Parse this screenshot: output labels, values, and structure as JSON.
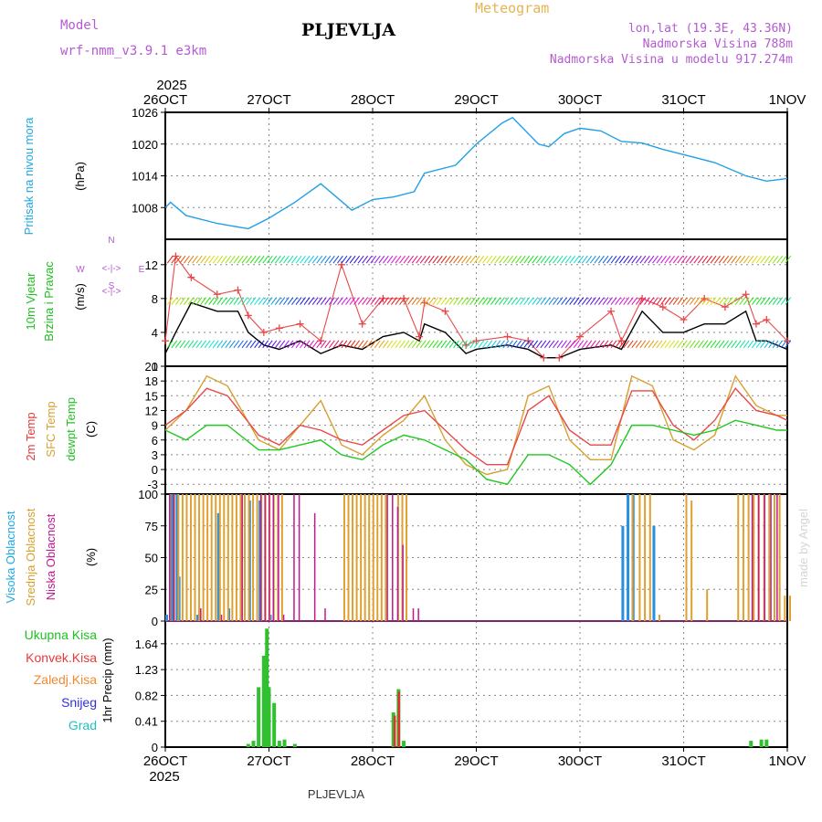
{
  "header": {
    "model_label": "Model",
    "model_name": "wrf-nmm_v3.9.1 e3km",
    "station": "PLJEVLJA",
    "meteogram_label": "Meteogram",
    "lonlat": "lon,lat (19.3E, 43.36N)",
    "altitude": "Nadmorska Visina 788m",
    "model_altitude": "Nadmorska Visina u modelu 917.274m",
    "watermark": "made by Angel",
    "footer_station": "PLJEVLJA"
  },
  "colors": {
    "pressure": "#20a0e8",
    "temp2m": "#e84848",
    "sfc": "#d8a030",
    "dewpt": "#20c820",
    "wind_speed": "#000000",
    "gust": "#e84848",
    "frame": "#000000",
    "cloud_high": "#2890e0",
    "cloud_mid": "#e0a030",
    "cloud_low": "#c01890",
    "precip_total": "#30c030",
    "precip_conv": "#e03030",
    "label_cyan": "#20a8e0",
    "label_green": "#20c020",
    "label_red": "#e83838",
    "label_orange": "#f08a30",
    "label_blue": "#3030e0",
    "label_teal": "#20c0c0",
    "label_purple": "#b45ad2"
  },
  "time_axis": {
    "top_year": "2025",
    "bottom_year": "2025",
    "ticks": [
      "26OCT",
      "27OCT",
      "28OCT",
      "29OCT",
      "30OCT",
      "31OCT",
      "1NOV"
    ]
  },
  "chart_data": [
    {
      "type": "line",
      "name": "pressure",
      "ylabel_left": "Pritisak na nivou mora",
      "ylabel_unit": "(hPa)",
      "ylim": [
        1002,
        1026
      ],
      "yticks": [
        "1026",
        "1020",
        "1014",
        "1008"
      ],
      "x_days": [
        0,
        0.05,
        0.2,
        0.5,
        0.8,
        1.0,
        1.25,
        1.5,
        1.65,
        1.8,
        2.0,
        2.2,
        2.4,
        2.5,
        2.8,
        3.0,
        3.25,
        3.35,
        3.6,
        3.7,
        3.85,
        4.0,
        4.2,
        4.4,
        4.6,
        4.8,
        5.0,
        5.3,
        5.6,
        5.8,
        6.0
      ],
      "series": [
        {
          "name": "Pritisak",
          "values": [
            1008,
            1009,
            1006.5,
            1005,
            1004,
            1006,
            1009,
            1012.5,
            1010,
            1007.5,
            1009.5,
            1010,
            1011,
            1014.5,
            1016,
            1020,
            1024,
            1025,
            1020,
            1019.5,
            1022,
            1023,
            1022.5,
            1020.5,
            1020.2,
            1019,
            1018,
            1016.5,
            1014,
            1013,
            1013.5
          ]
        }
      ]
    },
    {
      "type": "line",
      "name": "wind",
      "ylabel_left": "10m Vjetar",
      "ylabel_left2": "Brzina i Pravac",
      "ylabel_unit": "(m/s)",
      "compass_n": "N",
      "compass_s": "S",
      "compass_w": "W",
      "compass_e": "E",
      "compass_row1": "<-|->",
      "compass_row2": "<-|->",
      "ylim": [
        0,
        15
      ],
      "yticks": [
        "12",
        "8",
        "4",
        "0"
      ],
      "x_days": [
        0,
        0.1,
        0.25,
        0.5,
        0.7,
        0.8,
        0.95,
        1.1,
        1.3,
        1.5,
        1.7,
        1.9,
        2.1,
        2.3,
        2.45,
        2.5,
        2.7,
        2.9,
        3.0,
        3.3,
        3.5,
        3.65,
        3.8,
        4.0,
        4.3,
        4.4,
        4.6,
        4.8,
        5.0,
        5.2,
        5.4,
        5.6,
        5.7,
        5.8,
        6.0
      ],
      "series": [
        {
          "name": "Brzina",
          "values": [
            1.5,
            4,
            7.5,
            6.5,
            6.5,
            4,
            2.5,
            2,
            3,
            1.5,
            2.5,
            2,
            3.5,
            4,
            3,
            5,
            4,
            1.5,
            2,
            2.5,
            2,
            1,
            1,
            2,
            2.5,
            2,
            6.5,
            4,
            4,
            5,
            5,
            6.5,
            3,
            3,
            2
          ]
        },
        {
          "name": "Udari",
          "values": [
            3,
            13,
            10.5,
            8.5,
            9,
            6,
            4,
            4.5,
            5,
            3,
            12,
            5,
            8,
            8,
            3.5,
            7.5,
            6.5,
            2.5,
            3,
            3.5,
            3,
            1,
            1,
            3.5,
            6.5,
            3,
            8,
            7,
            5.5,
            8,
            7,
            8.5,
            5,
            5.5,
            3
          ]
        }
      ]
    },
    {
      "type": "line",
      "name": "temperature",
      "ylabel_1": "2m Temp",
      "ylabel_2": "SFC Temp",
      "ylabel_3": "dewpt Temp",
      "ylabel_unit": "(C)",
      "ylim": [
        -5,
        21
      ],
      "yticks": [
        "21",
        "18",
        "15",
        "12",
        "9",
        "6",
        "3",
        "0",
        "-3"
      ],
      "x_days": [
        0,
        0.2,
        0.4,
        0.6,
        0.9,
        1.1,
        1.3,
        1.5,
        1.7,
        1.9,
        2.1,
        2.3,
        2.5,
        2.7,
        2.9,
        3.1,
        3.3,
        3.5,
        3.7,
        3.9,
        4.1,
        4.3,
        4.5,
        4.7,
        4.9,
        5.1,
        5.3,
        5.5,
        5.7,
        5.9,
        6.0
      ],
      "series": [
        {
          "name": "2m Temp",
          "values": [
            9,
            12,
            16.5,
            15,
            7,
            5,
            9,
            8,
            6,
            5,
            8,
            11,
            12,
            8,
            4,
            1,
            1,
            12,
            15,
            8,
            5,
            5,
            16,
            16,
            9,
            6,
            10,
            16.5,
            12,
            11,
            10
          ]
        },
        {
          "name": "SFC Temp",
          "values": [
            8,
            12,
            19,
            17,
            6,
            4,
            9,
            14,
            5,
            3,
            7,
            10,
            15,
            6,
            1,
            -1,
            0,
            15,
            17,
            6,
            2,
            2,
            19,
            17,
            6,
            4,
            7,
            19,
            13,
            11,
            11
          ]
        },
        {
          "name": "dewpt Temp",
          "values": [
            8,
            6,
            9,
            9,
            4,
            4,
            5,
            6,
            3,
            2,
            5,
            7,
            6,
            4,
            2,
            -2,
            -3,
            3,
            3,
            1,
            -3,
            1,
            9,
            9,
            8,
            7,
            8,
            10,
            9,
            8,
            8
          ]
        }
      ]
    },
    {
      "type": "bar",
      "name": "clouds",
      "ylabel_1": "Visoka Oblacnost",
      "ylabel_2": "Srednja Oblacnost",
      "ylabel_3": "Niska Oblacnost",
      "ylabel_unit": "(%)",
      "ylim": [
        0,
        100
      ],
      "yticks": [
        "100",
        "75",
        "50",
        "25",
        "0"
      ],
      "series": [
        {
          "name": "Visoka",
          "x_days": [
            0.0,
            0.05,
            0.1,
            0.12,
            0.3,
            0.5,
            0.6,
            0.8,
            0.9,
            1.0,
            4.4,
            4.45,
            4.5,
            4.7
          ],
          "values": [
            5,
            100,
            100,
            35,
            5,
            85,
            10,
            95,
            95,
            5,
            75,
            100,
            100,
            75
          ]
        },
        {
          "name": "Srednja",
          "x_days": [
            0.02,
            0.06,
            0.1,
            0.14,
            0.18,
            0.22,
            0.26,
            0.3,
            0.34,
            0.38,
            0.42,
            0.46,
            0.5,
            0.54,
            0.58,
            0.62,
            0.66,
            0.7,
            0.74,
            0.78,
            0.82,
            0.86,
            0.9,
            0.94,
            0.98,
            1.02,
            1.06,
            1.1,
            1.7,
            1.74,
            1.78,
            1.82,
            1.86,
            1.9,
            1.94,
            1.98,
            2.02,
            2.06,
            2.1,
            2.22,
            2.26,
            2.3,
            4.48,
            4.55,
            4.6,
            4.65,
            4.74,
            5.0,
            5.05,
            5.2,
            5.5,
            5.55,
            5.6,
            5.65,
            5.7,
            5.75,
            5.8,
            5.85,
            5.9,
            5.95,
            6.0
          ],
          "values": [
            100,
            100,
            100,
            100,
            100,
            100,
            100,
            100,
            100,
            100,
            100,
            100,
            100,
            100,
            100,
            100,
            100,
            100,
            100,
            100,
            100,
            100,
            100,
            100,
            100,
            100,
            100,
            100,
            100,
            100,
            100,
            100,
            100,
            100,
            100,
            100,
            100,
            100,
            100,
            100,
            100,
            100,
            100,
            100,
            100,
            100,
            5,
            100,
            95,
            25,
            100,
            100,
            100,
            100,
            100,
            100,
            100,
            100,
            100,
            20,
            20
          ]
        },
        {
          "name": "Niska",
          "x_days": [
            0.0,
            0.04,
            0.3,
            0.5,
            0.7,
            0.88,
            0.92,
            0.96,
            1.0,
            1.05,
            1.1,
            1.2,
            1.25,
            1.4,
            1.5,
            2.1,
            2.15,
            2.2,
            2.25,
            2.35,
            2.4,
            5.62,
            5.68,
            5.74,
            5.8,
            5.86
          ],
          "values": [
            100,
            100,
            10,
            5,
            100,
            100,
            100,
            100,
            100,
            100,
            5,
            100,
            100,
            85,
            10,
            100,
            100,
            90,
            60,
            10,
            10,
            100,
            100,
            100,
            100,
            100
          ]
        }
      ]
    },
    {
      "type": "bar",
      "name": "precipitation",
      "legend": [
        "Ukupna Kisa",
        "Konvek.Kisa",
        "Zaledj.Kisa",
        "Snijeg",
        "Grad"
      ],
      "ylabel_unit": "1hr Precip (mm)",
      "ylim": [
        0,
        2.0
      ],
      "yticks": [
        "1.64",
        "1.23",
        "0.82",
        "0.41",
        "0"
      ],
      "series": [
        {
          "name": "Ukupna Kisa",
          "x_days": [
            0.8,
            0.85,
            0.9,
            0.95,
            0.98,
            1.0,
            1.05,
            1.1,
            1.15,
            1.25,
            2.2,
            2.25,
            2.3,
            5.65,
            5.75,
            5.8
          ],
          "values": [
            0.05,
            0.1,
            0.95,
            1.45,
            1.88,
            0.95,
            0.7,
            0.1,
            0.12,
            0.05,
            0.55,
            0.92,
            0.1,
            0.1,
            0.12,
            0.12
          ]
        },
        {
          "name": "Konvek.Kisa",
          "x_days": [
            2.22,
            2.26
          ],
          "values": [
            0.5,
            0.88
          ]
        }
      ]
    }
  ]
}
